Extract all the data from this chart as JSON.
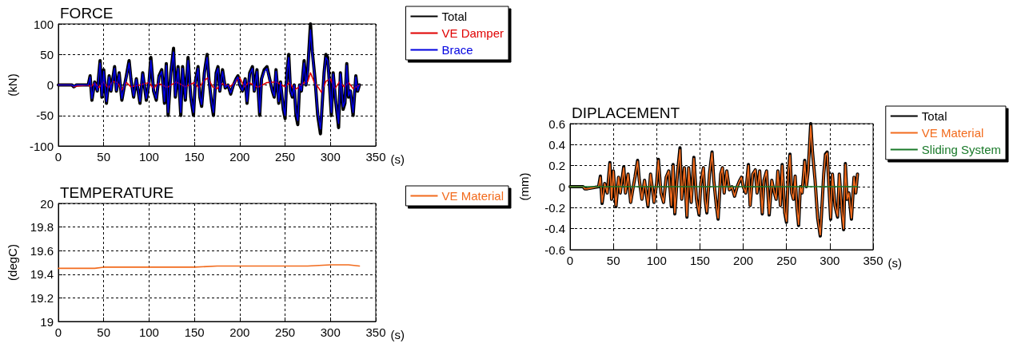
{
  "chart_data": [
    {
      "type": "line",
      "title": "FORCE",
      "xlabel": "(s)",
      "ylabel": "(kN)",
      "xlim": [
        0,
        350
      ],
      "xticks": [
        0,
        50,
        100,
        150,
        200,
        250,
        300,
        350
      ],
      "ylim": [
        -100,
        100
      ],
      "yticks": [
        -100,
        -50,
        0,
        50,
        100
      ],
      "grid": true,
      "legend": "top right",
      "marker": "none",
      "line_style": "solid",
      "series": [
        {
          "name": "Total",
          "color": "#000000",
          "x": [
            0,
            15,
            17,
            20,
            33,
            35,
            37,
            40,
            43,
            46,
            48,
            50,
            53,
            56,
            58,
            62,
            64,
            67,
            70,
            73,
            75,
            78,
            80,
            83,
            86,
            90,
            93,
            97,
            100,
            102,
            105,
            108,
            111,
            114,
            117,
            119,
            121,
            124,
            127,
            129,
            132,
            135,
            137,
            140,
            143,
            146,
            149,
            151,
            154,
            156,
            158,
            161,
            164,
            166,
            169,
            171,
            174,
            176,
            178,
            181,
            184,
            187,
            190,
            193,
            196,
            198,
            200,
            203,
            206,
            208,
            211,
            214,
            216,
            219,
            222,
            224,
            227,
            230,
            233,
            236,
            238,
            240,
            243,
            245,
            248,
            250,
            252,
            254,
            256,
            258,
            260,
            262,
            264,
            266,
            268,
            271,
            273,
            275,
            278,
            280,
            283,
            286,
            289,
            291,
            293,
            295,
            297,
            299,
            301,
            303,
            306,
            309,
            311,
            314,
            316,
            318,
            320,
            322,
            325,
            328,
            330,
            332
          ],
          "values": [
            0,
            0,
            -3,
            0,
            0,
            15,
            -25,
            5,
            -10,
            40,
            -20,
            25,
            -30,
            15,
            -10,
            30,
            -10,
            20,
            -25,
            0,
            15,
            40,
            10,
            -20,
            10,
            -30,
            20,
            -25,
            5,
            45,
            -10,
            -25,
            15,
            25,
            -30,
            35,
            -50,
            20,
            60,
            -20,
            30,
            -50,
            30,
            -25,
            45,
            -20,
            -50,
            5,
            30,
            -20,
            -35,
            20,
            50,
            10,
            -30,
            -50,
            20,
            30,
            -10,
            25,
            -5,
            0,
            -15,
            0,
            10,
            15,
            0,
            -10,
            10,
            -30,
            20,
            30,
            -10,
            25,
            -50,
            10,
            25,
            30,
            10,
            -10,
            -20,
            25,
            -30,
            5,
            -40,
            -55,
            20,
            50,
            -10,
            -20,
            0,
            -50,
            -65,
            0,
            -10,
            40,
            0,
            25,
            100,
            55,
            10,
            -50,
            -80,
            -30,
            20,
            50,
            45,
            0,
            -50,
            20,
            -30,
            -70,
            20,
            -40,
            -30,
            35,
            -20,
            -10,
            -50,
            15,
            -10,
            0
          ]
        },
        {
          "name": "VE Damper",
          "color": "#e00000",
          "x": [
            0,
            15,
            17,
            20,
            33,
            36,
            40,
            45,
            50,
            55,
            60,
            65,
            70,
            75,
            80,
            90,
            100,
            105,
            110,
            120,
            130,
            140,
            150,
            155,
            160,
            165,
            170,
            175,
            180,
            190,
            200,
            205,
            210,
            220,
            230,
            240,
            250,
            255,
            260,
            265,
            270,
            275,
            278,
            282,
            287,
            290,
            295,
            300,
            305,
            310,
            315,
            320,
            325,
            332
          ],
          "values": [
            0,
            0,
            -3,
            -2,
            0,
            -3,
            3,
            -4,
            5,
            -5,
            6,
            4,
            -8,
            4,
            -3,
            0,
            4,
            -6,
            3,
            -4,
            5,
            -3,
            4,
            -5,
            6,
            12,
            -3,
            -6,
            2,
            -2,
            12,
            -3,
            4,
            -4,
            4,
            5,
            -3,
            4,
            -8,
            -4,
            3,
            6,
            20,
            5,
            -5,
            -12,
            6,
            10,
            -6,
            5,
            -3,
            4,
            -6,
            0
          ]
        },
        {
          "name": "Brace",
          "color": "#0000e0",
          "x": [
            0,
            15,
            17,
            20,
            33,
            35,
            37,
            40,
            43,
            46,
            48,
            50,
            53,
            56,
            58,
            62,
            64,
            67,
            70,
            73,
            75,
            78,
            80,
            83,
            86,
            90,
            93,
            97,
            100,
            102,
            105,
            108,
            111,
            114,
            117,
            119,
            121,
            124,
            127,
            129,
            132,
            135,
            137,
            140,
            143,
            146,
            149,
            151,
            154,
            156,
            158,
            161,
            164,
            166,
            169,
            171,
            174,
            176,
            178,
            181,
            184,
            187,
            190,
            193,
            196,
            198,
            200,
            203,
            206,
            208,
            211,
            214,
            216,
            219,
            222,
            224,
            227,
            230,
            233,
            236,
            238,
            240,
            243,
            245,
            248,
            250,
            252,
            254,
            256,
            258,
            260,
            262,
            264,
            266,
            268,
            271,
            273,
            275,
            278,
            280,
            283,
            286,
            289,
            291,
            293,
            295,
            297,
            299,
            301,
            303,
            306,
            309,
            311,
            314,
            316,
            318,
            320,
            322,
            325,
            328,
            330,
            332
          ],
          "values": [
            0,
            0,
            -2,
            0,
            0,
            13,
            -22,
            4,
            -9,
            36,
            -18,
            22,
            -27,
            13,
            -9,
            27,
            -9,
            18,
            -22,
            0,
            13,
            36,
            9,
            -18,
            9,
            -27,
            18,
            -22,
            4,
            40,
            -9,
            -22,
            13,
            22,
            -27,
            32,
            -45,
            18,
            54,
            -18,
            27,
            -45,
            27,
            -22,
            40,
            -18,
            -45,
            4,
            27,
            -18,
            -32,
            18,
            45,
            9,
            -27,
            -45,
            18,
            27,
            -9,
            22,
            -4,
            0,
            -13,
            0,
            9,
            13,
            0,
            -9,
            9,
            -27,
            18,
            27,
            -9,
            22,
            -45,
            9,
            22,
            27,
            9,
            -9,
            -18,
            22,
            -27,
            4,
            -36,
            -50,
            18,
            45,
            -9,
            -18,
            0,
            -45,
            -58,
            0,
            -9,
            36,
            0,
            22,
            90,
            50,
            9,
            -45,
            -72,
            -27,
            18,
            45,
            40,
            0,
            -45,
            18,
            -27,
            -63,
            18,
            -36,
            -27,
            32,
            -18,
            -9,
            -45,
            13,
            -9,
            0
          ]
        }
      ]
    },
    {
      "type": "line",
      "title": "TEMPERATURE",
      "xlabel": "(s)",
      "ylabel": "(degC)",
      "xlim": [
        0,
        350
      ],
      "xticks": [
        0,
        50,
        100,
        150,
        200,
        250,
        300,
        350
      ],
      "ylim": [
        19,
        20
      ],
      "yticks": [
        19,
        19.2,
        19.4,
        19.6,
        19.8,
        20
      ],
      "grid": true,
      "legend": "top right",
      "marker": "none",
      "line_style": "solid",
      "series": [
        {
          "name": "VE Material",
          "color": "#f26b1d",
          "x": [
            0,
            20,
            40,
            50,
            75,
            100,
            125,
            150,
            175,
            200,
            225,
            250,
            275,
            300,
            320,
            332
          ],
          "values": [
            19.45,
            19.45,
            19.45,
            19.46,
            19.46,
            19.46,
            19.46,
            19.46,
            19.47,
            19.47,
            19.47,
            19.47,
            19.47,
            19.48,
            19.48,
            19.47
          ]
        }
      ]
    },
    {
      "type": "line",
      "title": "DIPLACEMENT",
      "xlabel": "(s)",
      "ylabel": "(mm)",
      "xlim": [
        0,
        350
      ],
      "xticks": [
        0,
        50,
        100,
        150,
        200,
        250,
        300,
        350
      ],
      "ylim": [
        -0.6,
        0.6
      ],
      "yticks": [
        -0.6,
        -0.4,
        -0.2,
        0,
        0.2,
        0.4,
        0.6
      ],
      "grid": true,
      "legend": "top right",
      "marker": "none",
      "line_style": "solid",
      "series": [
        {
          "name": "Total",
          "color": "#000000",
          "x": [
            0,
            15,
            17,
            20,
            33,
            35,
            37,
            40,
            43,
            46,
            48,
            50,
            53,
            56,
            58,
            62,
            64,
            67,
            70,
            73,
            75,
            78,
            80,
            83,
            86,
            90,
            93,
            97,
            100,
            102,
            105,
            108,
            111,
            114,
            117,
            119,
            121,
            124,
            127,
            129,
            132,
            135,
            137,
            140,
            143,
            146,
            149,
            151,
            154,
            156,
            158,
            161,
            164,
            166,
            169,
            171,
            174,
            176,
            178,
            181,
            184,
            187,
            190,
            193,
            196,
            198,
            200,
            203,
            206,
            208,
            211,
            214,
            216,
            219,
            222,
            224,
            227,
            230,
            233,
            236,
            238,
            240,
            243,
            245,
            248,
            250,
            252,
            254,
            256,
            258,
            260,
            262,
            264,
            266,
            268,
            271,
            273,
            275,
            278,
            280,
            283,
            286,
            289,
            291,
            293,
            295,
            297,
            299,
            301,
            303,
            306,
            309,
            311,
            314,
            316,
            318,
            320,
            322,
            325,
            328,
            330,
            332
          ],
          "values": [
            0,
            0,
            -0.02,
            -0.02,
            0,
            0.1,
            -0.16,
            0.03,
            -0.06,
            0.23,
            -0.12,
            0.15,
            -0.19,
            0.09,
            -0.06,
            0.19,
            -0.06,
            0.12,
            -0.15,
            0,
            0.09,
            0.25,
            0.06,
            -0.12,
            0.06,
            -0.19,
            0.12,
            -0.15,
            0.03,
            0.26,
            -0.06,
            -0.15,
            0.09,
            0.15,
            -0.19,
            0.21,
            -0.26,
            0.12,
            0.37,
            -0.12,
            0.18,
            -0.29,
            0.18,
            -0.15,
            0.28,
            -0.12,
            -0.27,
            0.03,
            0.18,
            -0.12,
            -0.25,
            0.12,
            0.33,
            0.06,
            -0.18,
            -0.31,
            0.12,
            0.18,
            -0.06,
            0.15,
            -0.03,
            0,
            -0.09,
            0,
            0.06,
            0.09,
            0,
            -0.06,
            0.21,
            -0.18,
            0.12,
            0.16,
            -0.06,
            0.15,
            -0.26,
            0.06,
            0.15,
            -0.27,
            0.06,
            -0.06,
            -0.12,
            0.15,
            -0.18,
            0.21,
            -0.25,
            -0.34,
            0.12,
            0.31,
            -0.06,
            -0.12,
            0.1,
            -0.2,
            -0.37,
            0,
            -0.06,
            0.25,
            0,
            0.15,
            0.6,
            0.33,
            0.06,
            -0.3,
            -0.47,
            -0.18,
            0.12,
            0.31,
            0.33,
            0,
            -0.31,
            0.12,
            -0.18,
            -0.29,
            0.12,
            -0.24,
            -0.41,
            0.22,
            -0.12,
            -0.06,
            -0.31,
            0.09,
            -0.06,
            0.12
          ]
        },
        {
          "name": "VE Material",
          "color": "#f26b1d",
          "x": [
            0,
            15,
            17,
            20,
            33,
            35,
            37,
            40,
            43,
            46,
            48,
            50,
            53,
            56,
            58,
            62,
            64,
            67,
            70,
            73,
            75,
            78,
            80,
            83,
            86,
            90,
            93,
            97,
            100,
            102,
            105,
            108,
            111,
            114,
            117,
            119,
            121,
            124,
            127,
            129,
            132,
            135,
            137,
            140,
            143,
            146,
            149,
            151,
            154,
            156,
            158,
            161,
            164,
            166,
            169,
            171,
            174,
            176,
            178,
            181,
            184,
            187,
            190,
            193,
            196,
            198,
            200,
            203,
            206,
            208,
            211,
            214,
            216,
            219,
            222,
            224,
            227,
            230,
            233,
            236,
            238,
            240,
            243,
            245,
            248,
            250,
            252,
            254,
            256,
            258,
            260,
            262,
            264,
            266,
            268,
            271,
            273,
            275,
            278,
            280,
            283,
            286,
            289,
            291,
            293,
            295,
            297,
            299,
            301,
            303,
            306,
            309,
            311,
            314,
            316,
            318,
            320,
            322,
            325,
            328,
            330,
            332
          ],
          "values": [
            0,
            0,
            -0.02,
            -0.02,
            0,
            0.09,
            -0.15,
            0.03,
            -0.06,
            0.22,
            -0.12,
            0.15,
            -0.18,
            0.09,
            -0.06,
            0.18,
            -0.06,
            0.12,
            -0.15,
            0,
            0.09,
            0.24,
            0.06,
            -0.12,
            0.06,
            -0.18,
            0.12,
            -0.15,
            0.03,
            0.25,
            -0.06,
            -0.15,
            0.09,
            0.15,
            -0.18,
            0.2,
            -0.25,
            0.12,
            0.35,
            -0.12,
            0.18,
            -0.28,
            0.18,
            -0.15,
            0.27,
            -0.12,
            -0.26,
            0.03,
            0.18,
            -0.12,
            -0.24,
            0.12,
            0.32,
            0.06,
            -0.18,
            -0.3,
            0.12,
            0.18,
            -0.06,
            0.15,
            -0.03,
            0,
            -0.09,
            0,
            0.06,
            0.09,
            0,
            -0.06,
            0.2,
            -0.18,
            0.12,
            0.16,
            -0.06,
            0.15,
            -0.25,
            0.06,
            0.15,
            -0.26,
            0.06,
            -0.06,
            -0.12,
            0.15,
            -0.18,
            0.2,
            -0.24,
            -0.33,
            0.12,
            0.3,
            -0.06,
            -0.12,
            0.1,
            -0.2,
            -0.36,
            0,
            -0.06,
            0.24,
            0,
            0.15,
            0.58,
            0.33,
            0.06,
            -0.3,
            -0.46,
            -0.18,
            0.12,
            0.3,
            0.32,
            0,
            -0.3,
            0.12,
            -0.18,
            -0.28,
            0.12,
            -0.24,
            -0.4,
            0.21,
            -0.12,
            -0.06,
            -0.3,
            0.09,
            -0.06,
            0.12
          ]
        },
        {
          "name": "Sliding System",
          "color": "#1a7a2a",
          "x": [
            0,
            332
          ],
          "values": [
            0,
            0
          ]
        }
      ]
    }
  ]
}
